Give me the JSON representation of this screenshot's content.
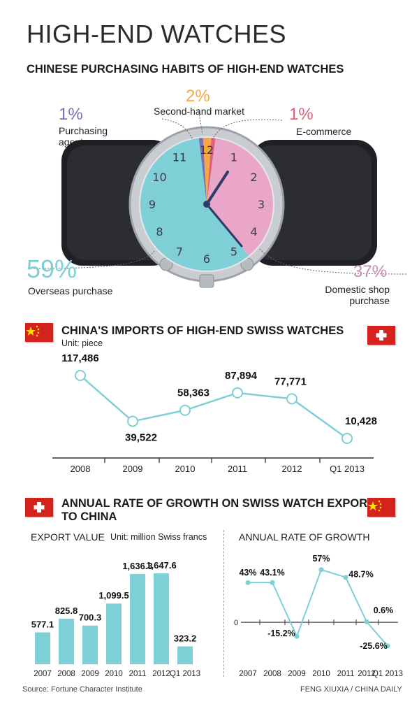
{
  "title": "HIGH-END WATCHES",
  "section1": {
    "title": "CHINESE PURCHASING HABITS OF HIGH-END WATCHES"
  },
  "section2": {
    "title": "CHINA'S IMPORTS OF HIGH-END SWISS WATCHES",
    "unit": "Unit: piece"
  },
  "section3": {
    "title_line1": "ANNUAL RATE OF GROWTH ON SWISS WATCH EXPORTS",
    "title_line2": "TO CHINA",
    "left_title": "EXPORT VALUE",
    "left_unit": "Unit: million Swiss francs",
    "right_title": "ANNUAL RATE OF GROWTH"
  },
  "footer": {
    "source": "Source: Fortune Character Institute",
    "credit": "FENG XIUXIA / CHINA DAILY"
  },
  "colors": {
    "accent": "#7fcfd6",
    "line": "#7fcfd6",
    "overseas": "#7fcfd6",
    "domestic": "#e9a6c8",
    "second_hand": "#f5a742",
    "ecommerce": "#e0607e",
    "agent": "#7d6fb5",
    "china_flag": "#d3231c",
    "swiss_flag": "#d3231c"
  },
  "chart_data": [
    {
      "type": "pie",
      "title": "CHINESE PURCHASING HABITS OF HIGH-END WATCHES",
      "slices": [
        {
          "name": "Overseas purchase",
          "value": 59,
          "label": "59%"
        },
        {
          "name": "Domestic shop purchase",
          "value": 37,
          "label": "37%"
        },
        {
          "name": "Purchasing agent",
          "value": 1,
          "label": "1%"
        },
        {
          "name": "Second-hand market",
          "value": 2,
          "label": "2%"
        },
        {
          "name": "E-commerce",
          "value": 1,
          "label": "1%"
        }
      ]
    },
    {
      "type": "line",
      "title": "CHINA'S IMPORTS OF HIGH-END SWISS WATCHES",
      "unit": "Unit: piece",
      "categories": [
        "2008",
        "2009",
        "2010",
        "2011",
        "2012",
        "Q1 2013"
      ],
      "values": [
        117486,
        39522,
        58363,
        87894,
        77771,
        10428
      ],
      "labels": [
        "117,486",
        "39,522",
        "58,363",
        "87,894",
        "77,771",
        "10,428"
      ]
    },
    {
      "type": "bar",
      "title": "EXPORT VALUE",
      "unit": "Unit: million Swiss francs",
      "categories": [
        "2007",
        "2008",
        "2009",
        "2010",
        "2011",
        "2012",
        "Q1 2013"
      ],
      "values": [
        577.1,
        825.8,
        700.3,
        1099.5,
        1636.3,
        1647.6,
        323.2
      ],
      "labels": [
        "577.1",
        "825.8",
        "700.3",
        "1,099.5",
        "1,636.3",
        "1,647.6",
        "323.2"
      ]
    },
    {
      "type": "line",
      "title": "ANNUAL RATE OF GROWTH",
      "categories": [
        "2007",
        "2008",
        "2009",
        "2010",
        "2011",
        "2012",
        "Q1 2013"
      ],
      "values": [
        43,
        43.1,
        -15.2,
        57,
        48.7,
        0.6,
        -25.6
      ],
      "labels": [
        "43%",
        "43.1%",
        "-15.2%",
        "57%",
        "48.7%",
        "0.6%",
        "-25.6%"
      ],
      "zero_label": "0"
    }
  ]
}
